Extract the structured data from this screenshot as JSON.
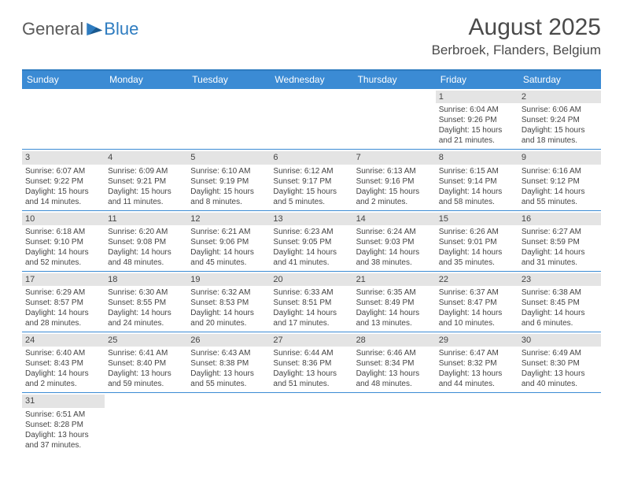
{
  "logo": {
    "part1": "General",
    "part2": "Blue"
  },
  "title": "August 2025",
  "location": "Berbroek, Flanders, Belgium",
  "colors": {
    "header_bg": "#3b8bd4",
    "border": "#2e7cc0",
    "daynum_bg": "#e4e4e4",
    "text": "#444444",
    "title_text": "#4a4a4a"
  },
  "day_labels": [
    "Sunday",
    "Monday",
    "Tuesday",
    "Wednesday",
    "Thursday",
    "Friday",
    "Saturday"
  ],
  "weeks": [
    [
      null,
      null,
      null,
      null,
      null,
      {
        "n": "1",
        "sr": "Sunrise: 6:04 AM",
        "ss": "Sunset: 9:26 PM",
        "dl": "Daylight: 15 hours and 21 minutes."
      },
      {
        "n": "2",
        "sr": "Sunrise: 6:06 AM",
        "ss": "Sunset: 9:24 PM",
        "dl": "Daylight: 15 hours and 18 minutes."
      }
    ],
    [
      {
        "n": "3",
        "sr": "Sunrise: 6:07 AM",
        "ss": "Sunset: 9:22 PM",
        "dl": "Daylight: 15 hours and 14 minutes."
      },
      {
        "n": "4",
        "sr": "Sunrise: 6:09 AM",
        "ss": "Sunset: 9:21 PM",
        "dl": "Daylight: 15 hours and 11 minutes."
      },
      {
        "n": "5",
        "sr": "Sunrise: 6:10 AM",
        "ss": "Sunset: 9:19 PM",
        "dl": "Daylight: 15 hours and 8 minutes."
      },
      {
        "n": "6",
        "sr": "Sunrise: 6:12 AM",
        "ss": "Sunset: 9:17 PM",
        "dl": "Daylight: 15 hours and 5 minutes."
      },
      {
        "n": "7",
        "sr": "Sunrise: 6:13 AM",
        "ss": "Sunset: 9:16 PM",
        "dl": "Daylight: 15 hours and 2 minutes."
      },
      {
        "n": "8",
        "sr": "Sunrise: 6:15 AM",
        "ss": "Sunset: 9:14 PM",
        "dl": "Daylight: 14 hours and 58 minutes."
      },
      {
        "n": "9",
        "sr": "Sunrise: 6:16 AM",
        "ss": "Sunset: 9:12 PM",
        "dl": "Daylight: 14 hours and 55 minutes."
      }
    ],
    [
      {
        "n": "10",
        "sr": "Sunrise: 6:18 AM",
        "ss": "Sunset: 9:10 PM",
        "dl": "Daylight: 14 hours and 52 minutes."
      },
      {
        "n": "11",
        "sr": "Sunrise: 6:20 AM",
        "ss": "Sunset: 9:08 PM",
        "dl": "Daylight: 14 hours and 48 minutes."
      },
      {
        "n": "12",
        "sr": "Sunrise: 6:21 AM",
        "ss": "Sunset: 9:06 PM",
        "dl": "Daylight: 14 hours and 45 minutes."
      },
      {
        "n": "13",
        "sr": "Sunrise: 6:23 AM",
        "ss": "Sunset: 9:05 PM",
        "dl": "Daylight: 14 hours and 41 minutes."
      },
      {
        "n": "14",
        "sr": "Sunrise: 6:24 AM",
        "ss": "Sunset: 9:03 PM",
        "dl": "Daylight: 14 hours and 38 minutes."
      },
      {
        "n": "15",
        "sr": "Sunrise: 6:26 AM",
        "ss": "Sunset: 9:01 PM",
        "dl": "Daylight: 14 hours and 35 minutes."
      },
      {
        "n": "16",
        "sr": "Sunrise: 6:27 AM",
        "ss": "Sunset: 8:59 PM",
        "dl": "Daylight: 14 hours and 31 minutes."
      }
    ],
    [
      {
        "n": "17",
        "sr": "Sunrise: 6:29 AM",
        "ss": "Sunset: 8:57 PM",
        "dl": "Daylight: 14 hours and 28 minutes."
      },
      {
        "n": "18",
        "sr": "Sunrise: 6:30 AM",
        "ss": "Sunset: 8:55 PM",
        "dl": "Daylight: 14 hours and 24 minutes."
      },
      {
        "n": "19",
        "sr": "Sunrise: 6:32 AM",
        "ss": "Sunset: 8:53 PM",
        "dl": "Daylight: 14 hours and 20 minutes."
      },
      {
        "n": "20",
        "sr": "Sunrise: 6:33 AM",
        "ss": "Sunset: 8:51 PM",
        "dl": "Daylight: 14 hours and 17 minutes."
      },
      {
        "n": "21",
        "sr": "Sunrise: 6:35 AM",
        "ss": "Sunset: 8:49 PM",
        "dl": "Daylight: 14 hours and 13 minutes."
      },
      {
        "n": "22",
        "sr": "Sunrise: 6:37 AM",
        "ss": "Sunset: 8:47 PM",
        "dl": "Daylight: 14 hours and 10 minutes."
      },
      {
        "n": "23",
        "sr": "Sunrise: 6:38 AM",
        "ss": "Sunset: 8:45 PM",
        "dl": "Daylight: 14 hours and 6 minutes."
      }
    ],
    [
      {
        "n": "24",
        "sr": "Sunrise: 6:40 AM",
        "ss": "Sunset: 8:43 PM",
        "dl": "Daylight: 14 hours and 2 minutes."
      },
      {
        "n": "25",
        "sr": "Sunrise: 6:41 AM",
        "ss": "Sunset: 8:40 PM",
        "dl": "Daylight: 13 hours and 59 minutes."
      },
      {
        "n": "26",
        "sr": "Sunrise: 6:43 AM",
        "ss": "Sunset: 8:38 PM",
        "dl": "Daylight: 13 hours and 55 minutes."
      },
      {
        "n": "27",
        "sr": "Sunrise: 6:44 AM",
        "ss": "Sunset: 8:36 PM",
        "dl": "Daylight: 13 hours and 51 minutes."
      },
      {
        "n": "28",
        "sr": "Sunrise: 6:46 AM",
        "ss": "Sunset: 8:34 PM",
        "dl": "Daylight: 13 hours and 48 minutes."
      },
      {
        "n": "29",
        "sr": "Sunrise: 6:47 AM",
        "ss": "Sunset: 8:32 PM",
        "dl": "Daylight: 13 hours and 44 minutes."
      },
      {
        "n": "30",
        "sr": "Sunrise: 6:49 AM",
        "ss": "Sunset: 8:30 PM",
        "dl": "Daylight: 13 hours and 40 minutes."
      }
    ],
    [
      {
        "n": "31",
        "sr": "Sunrise: 6:51 AM",
        "ss": "Sunset: 8:28 PM",
        "dl": "Daylight: 13 hours and 37 minutes."
      },
      null,
      null,
      null,
      null,
      null,
      null
    ]
  ]
}
